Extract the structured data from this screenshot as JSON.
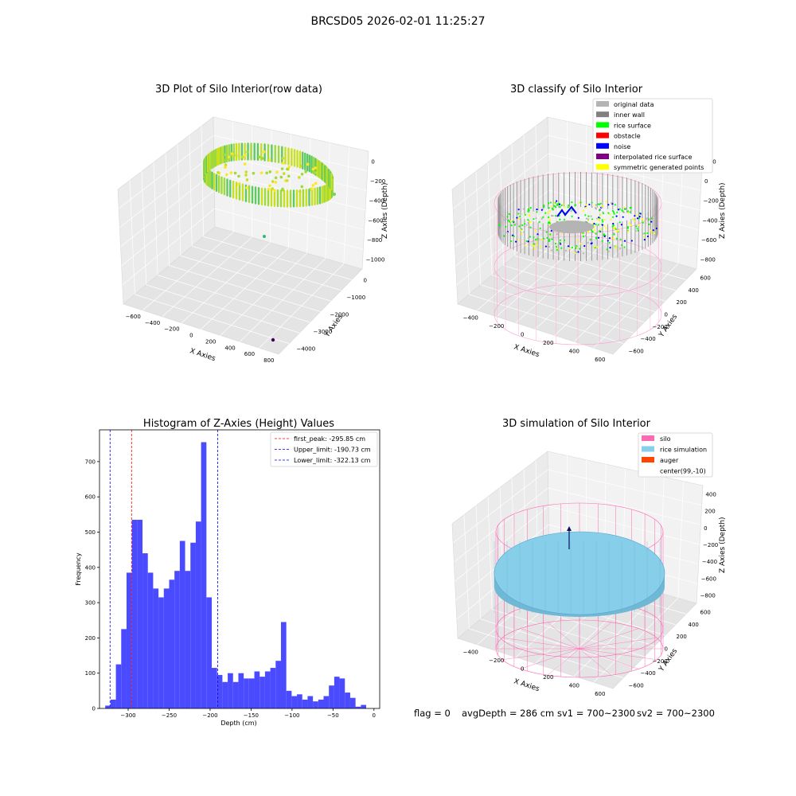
{
  "figure": {
    "suptitle": "BRCSD05 2026-02-01 11:25:27",
    "footer": {
      "flag": "flag = 0",
      "avg": "avgDepth = 286 cm",
      "sv1": "sv1 = 700~2300",
      "sv2": "sv2 = 700~2300"
    }
  },
  "colors": {
    "hist_bar": "#4a4aff",
    "first_peak": "#ff0000",
    "limit": "#0000ff",
    "silo": "#ff69b4",
    "rice_sim": "#87ceeb",
    "auger": "#ff4500",
    "grey_pane": "#ebebeb",
    "original": "#b4b4b4",
    "inner_wall": "#808080",
    "rice_surface": "#00ff00",
    "obstacle": "#ff0000",
    "noise": "#0000ff",
    "interp": "#800080",
    "symmetric": "#ffff00"
  },
  "chart_data": [
    {
      "type": "scatter",
      "subtype": "3d",
      "title": "3D Plot of Silo Interior(row data)",
      "xlabel": "X Axies",
      "ylabel": "Y Axies",
      "zlabel": "Z Axies (Depth)",
      "xticks": [
        "−600",
        "−400",
        "−200",
        "0",
        "200",
        "400",
        "600",
        "800"
      ],
      "yticks": [
        "0",
        "−1000",
        "−2000",
        "−3000",
        "−4000"
      ],
      "zticks": [
        "0",
        "−200",
        "−400",
        "−600",
        "−800",
        "−1000"
      ],
      "colormap": "viridis",
      "grid": true
    },
    {
      "type": "scatter",
      "subtype": "3d",
      "title": "3D classify of Silo Interior",
      "xlabel": "X Axies",
      "ylabel": "Y Axies",
      "zlabel": "Z Axies (Depth)",
      "xticks": [
        "−400",
        "−200",
        "0",
        "200",
        "400",
        "600"
      ],
      "yticks": [
        "600",
        "400",
        "200",
        "0",
        "−200",
        "−400",
        "−600"
      ],
      "zticks": [
        "200",
        "0",
        "−200",
        "−400",
        "−600",
        "−800"
      ],
      "legend": [
        "original data",
        "inner wall",
        "rice surface",
        "obstacle",
        "noise",
        "interpolated rice surface",
        "symmetric generated points"
      ],
      "legend_position": "upper-right",
      "grid": true
    },
    {
      "type": "bar",
      "subtype": "histogram",
      "title": "Histogram of Z-Axies (Height) Values",
      "xlabel": "Depth (cm)",
      "ylabel": "Frequency",
      "xlim": [
        -335,
        7
      ],
      "ylim": [
        0,
        790
      ],
      "xticks": [
        -300,
        -250,
        -200,
        -150,
        -100,
        -50,
        0
      ],
      "xtick_labels": [
        "−300",
        "−250",
        "−200",
        "−150",
        "−100",
        "−50",
        "0"
      ],
      "yticks": [
        0,
        100,
        200,
        300,
        400,
        500,
        600,
        700
      ],
      "bin_start": -328,
      "bin_width": 6.5,
      "values": [
        8,
        25,
        125,
        225,
        385,
        535,
        535,
        440,
        385,
        340,
        315,
        340,
        365,
        390,
        475,
        390,
        470,
        530,
        755,
        315,
        115,
        95,
        75,
        100,
        75,
        100,
        85,
        85,
        105,
        90,
        105,
        115,
        135,
        245,
        50,
        35,
        40,
        25,
        35,
        20,
        25,
        35,
        65,
        90,
        85,
        45,
        30,
        5,
        10
      ],
      "lines": [
        {
          "label": "first_peak: -295.85 cm",
          "x": -295.85,
          "color": "#ff0000"
        },
        {
          "label": "Upper_limit: -190.73 cm",
          "x": -190.73,
          "color": "#0000ff"
        },
        {
          "label": "Lower_limit: -322.13 cm",
          "x": -322.13,
          "color": "#0000ff"
        }
      ],
      "legend_position": "upper-right",
      "grid": false
    },
    {
      "type": "scatter",
      "subtype": "3d-surface",
      "title": "3D simulation of Silo Interior",
      "xlabel": "X Axies",
      "ylabel": "Y Axies",
      "zlabel": "Z Axies (Depth)",
      "xticks": [
        "−400",
        "−200",
        "0",
        "200",
        "400",
        "600"
      ],
      "yticks": [
        "600",
        "400",
        "200",
        "0",
        "−200",
        "−400",
        "−600"
      ],
      "zticks": [
        "400",
        "200",
        "0",
        "−200",
        "−400",
        "−600",
        "−800"
      ],
      "legend": [
        "silo",
        "rice simulation",
        "auger",
        "center(99,-10)"
      ],
      "legend_position": "upper-right",
      "grid": true
    }
  ]
}
